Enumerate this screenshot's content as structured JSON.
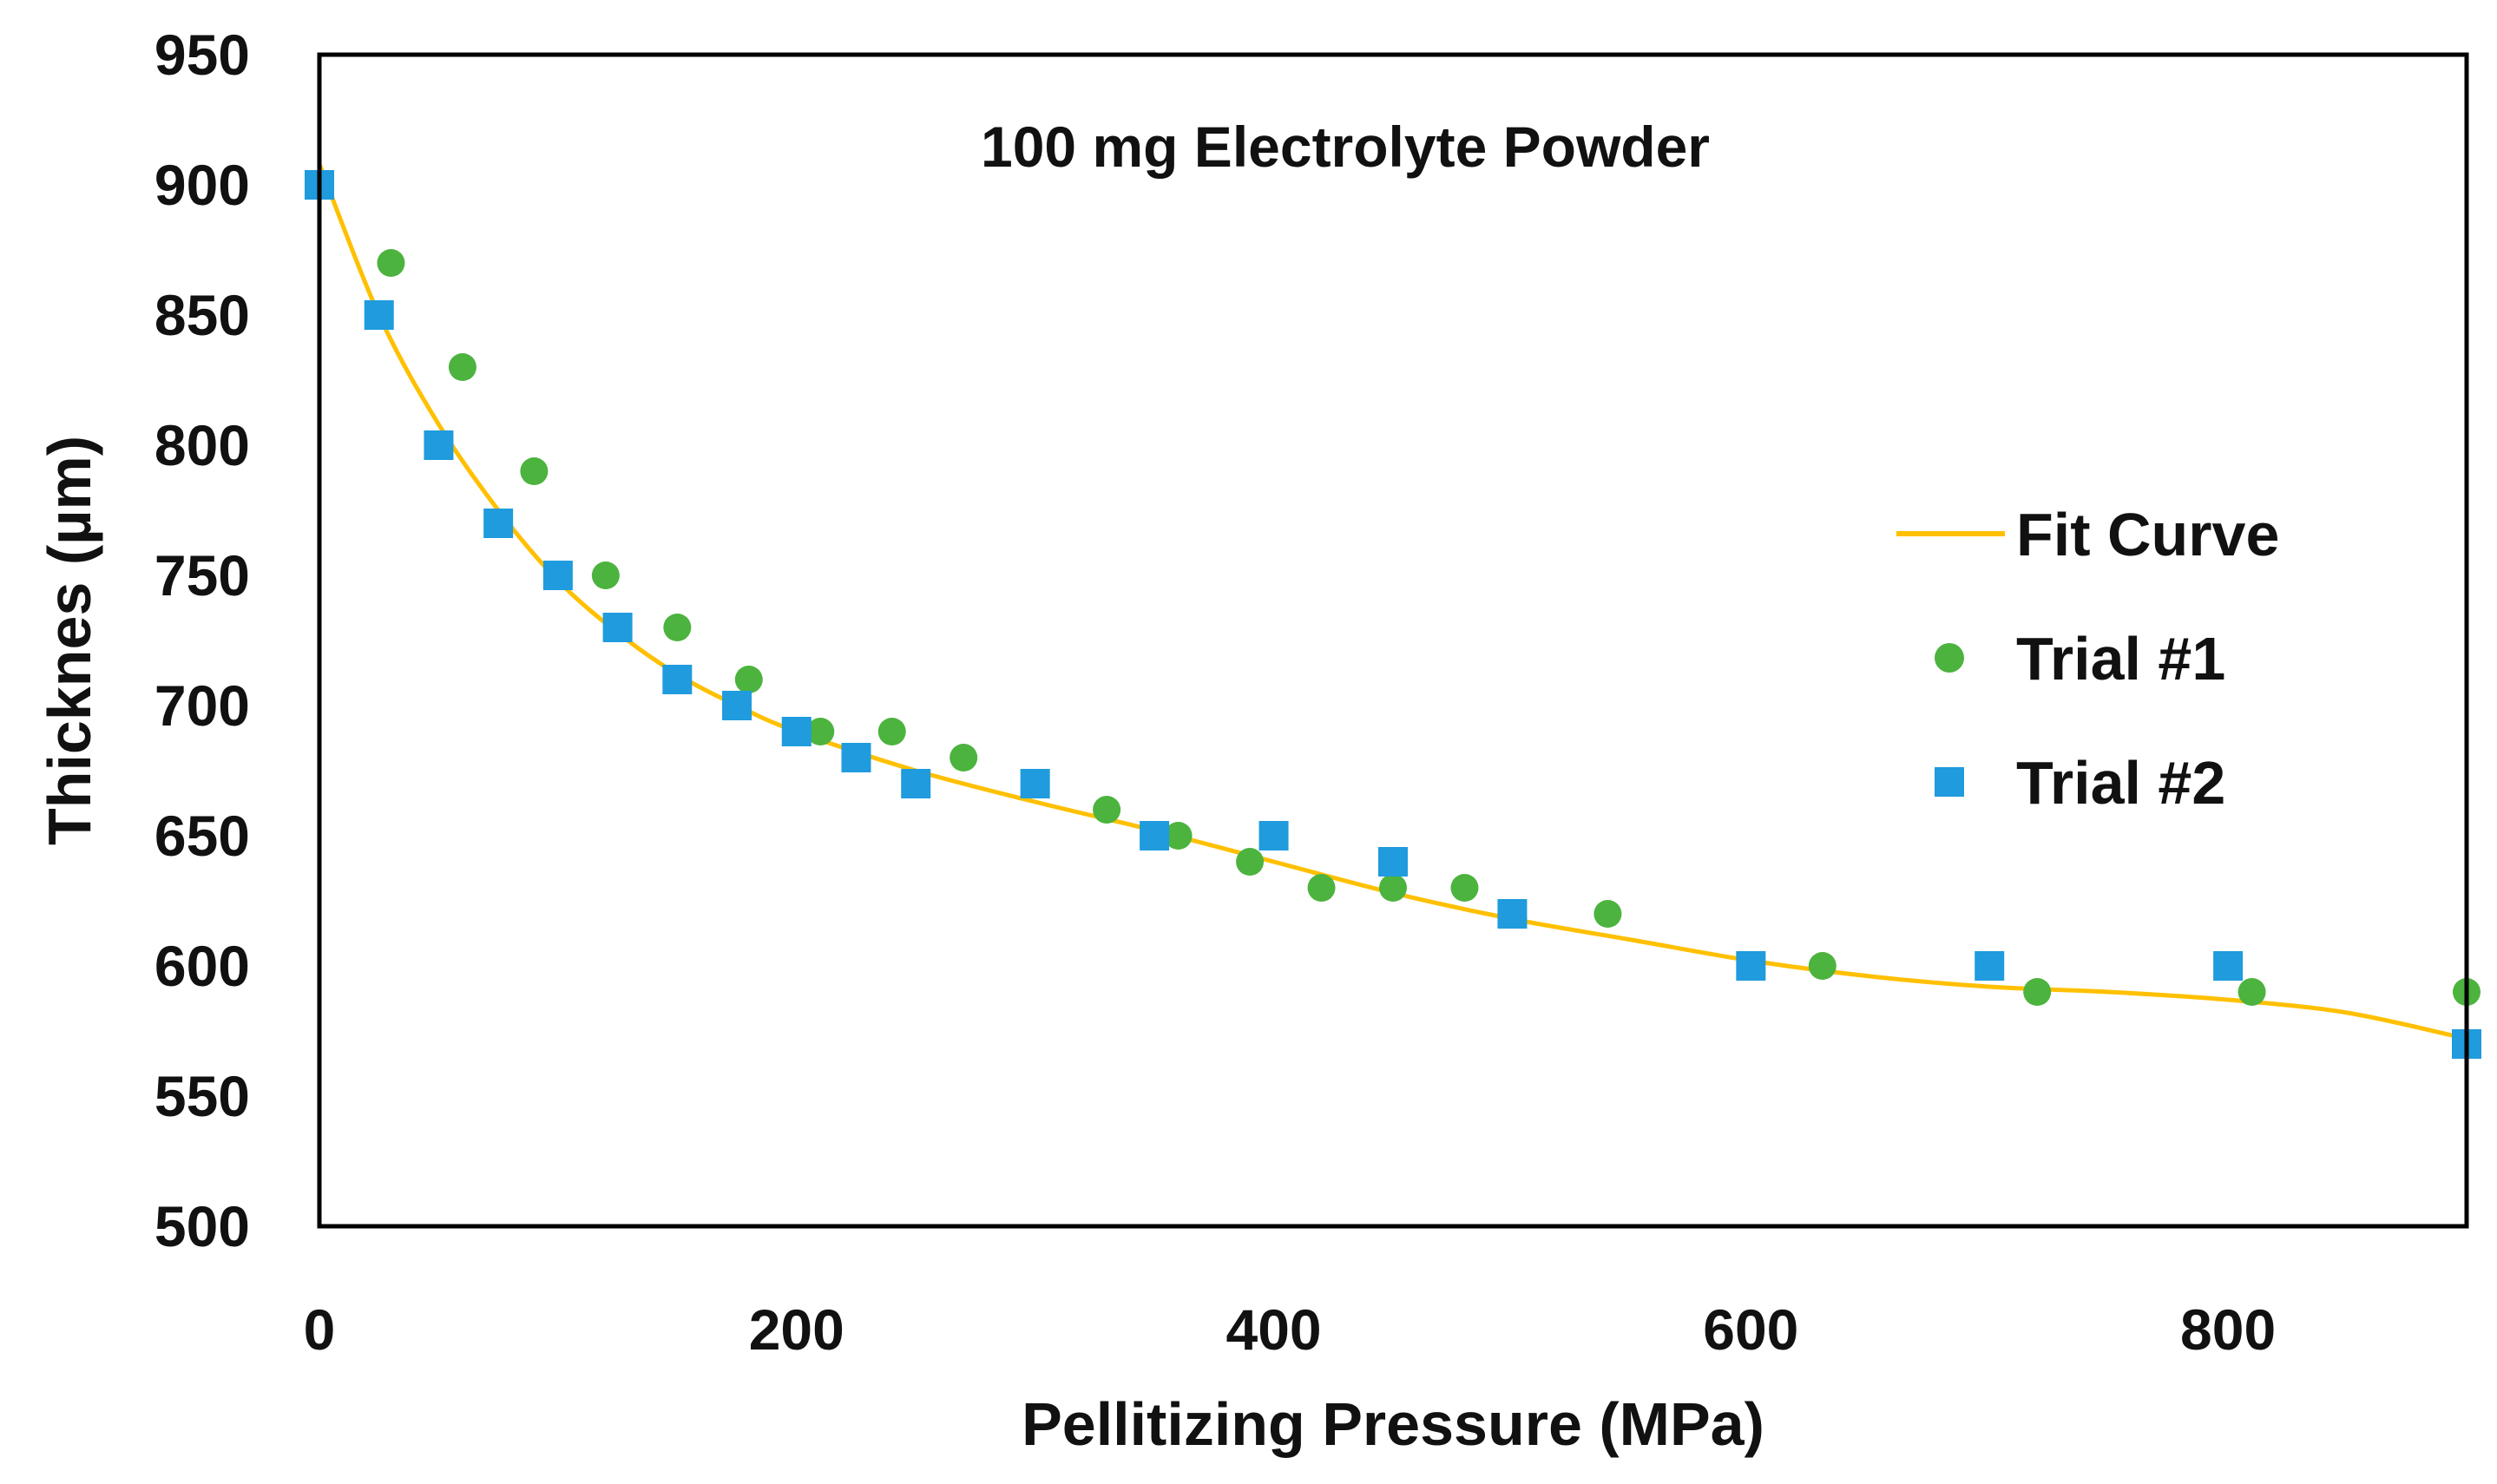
{
  "chart_data": {
    "type": "scatter",
    "title": "100 mg Electrolyte Powder",
    "xlabel": "Pellitizing Pressure (MPa)",
    "ylabel": "Thicknes (µm)",
    "xlim": [
      0,
      900
    ],
    "ylim": [
      500,
      950
    ],
    "xticks": [
      0,
      200,
      400,
      600,
      800
    ],
    "yticks": [
      500,
      550,
      600,
      650,
      700,
      750,
      800,
      850,
      900,
      950
    ],
    "grid": false,
    "legend_position": "right",
    "series": [
      {
        "name": "Fit Curve",
        "kind": "line",
        "color": "#FFC000",
        "x": [
          0,
          25,
          50,
          75,
          100,
          125,
          150,
          175,
          200,
          250,
          300,
          350,
          400,
          450,
          500,
          550,
          600,
          650,
          700,
          750,
          800,
          850,
          900
        ],
        "y": [
          908,
          850,
          808,
          775,
          748,
          728,
          712,
          700,
          690,
          675,
          663,
          652,
          640,
          628,
          618,
          610,
          602,
          596,
          592,
          590,
          587,
          582,
          572
        ]
      },
      {
        "name": "Trial #1",
        "kind": "scatter",
        "marker": "circle",
        "color": "#4CB33E",
        "x": [
          30,
          60,
          90,
          120,
          150,
          180,
          210,
          240,
          270,
          330,
          360,
          390,
          420,
          450,
          480,
          540,
          630,
          720,
          810,
          900
        ],
        "y": [
          870,
          830,
          790,
          750,
          730,
          710,
          690,
          690,
          680,
          660,
          650,
          640,
          630,
          630,
          630,
          620,
          600,
          590,
          590,
          590
        ]
      },
      {
        "name": "Trial #2",
        "kind": "scatter",
        "marker": "square",
        "color": "#1F9BDE",
        "x": [
          0,
          25,
          50,
          75,
          100,
          125,
          150,
          175,
          200,
          225,
          250,
          300,
          350,
          400,
          450,
          500,
          600,
          700,
          800,
          900
        ],
        "y": [
          900,
          850,
          800,
          770,
          750,
          730,
          710,
          700,
          690,
          680,
          670,
          670,
          650,
          650,
          640,
          620,
          600,
          600,
          600,
          570
        ]
      }
    ]
  }
}
